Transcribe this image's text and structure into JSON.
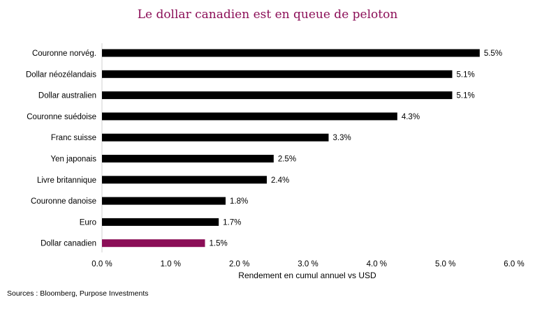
{
  "chart_data": {
    "type": "bar",
    "orientation": "horizontal",
    "title": "Le dollar canadien est en queue de peloton",
    "xlabel": "Rendement  en cumul annuel vs USD",
    "ylabel": "",
    "categories": [
      "Couronne norvég.",
      "Dollar néozélandais",
      "Dollar australien",
      "Couronne suédoise",
      "Franc suisse",
      "Yen japonais",
      "Livre britannique",
      "Couronne danoise",
      "Euro",
      "Dollar canadien"
    ],
    "values": [
      5.5,
      5.1,
      5.1,
      4.3,
      3.3,
      2.5,
      2.4,
      1.8,
      1.7,
      1.5
    ],
    "data_labels": [
      "5.5%",
      "5.1%",
      "5.1%",
      "4.3%",
      "3.3%",
      "2.5%",
      "2.4%",
      "1.8%",
      "1.7%",
      "1.5%"
    ],
    "xlim": [
      0,
      6
    ],
    "xticks": [
      0,
      1,
      2,
      3,
      4,
      5,
      6
    ],
    "xtick_labels": [
      "0.0 %",
      "1.0 %",
      "2.0 %",
      "3.0 %",
      "4.0 %",
      "5.0 %",
      "6.0 %"
    ],
    "grid": false,
    "legend": "none",
    "colors": {
      "default": "#000000",
      "highlight": "#8B0E57",
      "title": "#8B0E57"
    },
    "highlight_category": "Dollar canadien"
  },
  "source": "Sources : Bloomberg,  Purpose Investments"
}
